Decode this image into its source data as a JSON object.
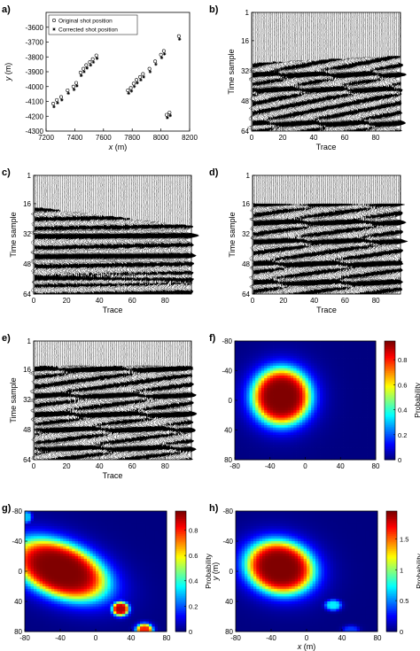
{
  "figure": {
    "panel_letters": [
      "a)",
      "b)",
      "c)",
      "d)",
      "e)",
      "f)",
      "g)",
      "h)"
    ]
  },
  "chart_data": [
    {
      "panel": "a)",
      "type": "scatter",
      "xlabel": "x (m)",
      "ylabel": "y (m)",
      "xlim": [
        7200,
        8200
      ],
      "ylim": [
        -4300,
        -3500
      ],
      "y_inverted": true,
      "xticks": [
        7200,
        7400,
        7600,
        7800,
        8000,
        8200
      ],
      "yticks": [
        -3600,
        -3700,
        -3800,
        -3900,
        -4000,
        -4100,
        -4200,
        -4300
      ],
      "legend": {
        "position": "top-left",
        "entries": [
          "Original shot position",
          "Corrected shot position"
        ]
      },
      "series": [
        {
          "name": "Original shot position",
          "marker": "circle",
          "x": [
            7250,
            7275,
            7305,
            7350,
            7390,
            7410,
            7440,
            7460,
            7480,
            7505,
            7525,
            7550,
            7770,
            7790,
            7810,
            7830,
            7855,
            7875,
            7920,
            7960,
            8000,
            8020,
            8040,
            8060,
            8125
          ],
          "y": [
            -4115,
            -4090,
            -4070,
            -4025,
            -4000,
            -3975,
            -3905,
            -3880,
            -3855,
            -3835,
            -3815,
            -3790,
            -4025,
            -4010,
            -3980,
            -3955,
            -3935,
            -3915,
            -3880,
            -3830,
            -3785,
            -3760,
            -4190,
            -4175,
            -3660
          ]
        },
        {
          "name": "Corrected shot position",
          "marker": "star",
          "x": [
            7255,
            7280,
            7310,
            7355,
            7395,
            7415,
            7445,
            7465,
            7485,
            7510,
            7530,
            7555,
            7775,
            7795,
            7815,
            7835,
            7860,
            7880,
            7925,
            7965,
            8005,
            8025,
            8045,
            8065,
            8130
          ],
          "y": [
            -4135,
            -4110,
            -4090,
            -4045,
            -4020,
            -3995,
            -3925,
            -3900,
            -3875,
            -3855,
            -3835,
            -3810,
            -4045,
            -4030,
            -4000,
            -3975,
            -3955,
            -3935,
            -3900,
            -3850,
            -3805,
            -3780,
            -4210,
            -4195,
            -3680
          ]
        }
      ]
    },
    {
      "panel": "b)",
      "type": "wiggle",
      "xlabel": "Trace",
      "ylabel": "Time sample",
      "xlim": [
        0,
        96
      ],
      "ylim": [
        1,
        64
      ],
      "xticks": [
        0,
        20,
        40,
        60,
        80
      ],
      "yticks": [
        1,
        16,
        32,
        48,
        64
      ],
      "first_arrival": [
        28,
        24
      ],
      "dark_bands": [
        34,
        42,
        60
      ]
    },
    {
      "panel": "c)",
      "type": "wiggle",
      "xlabel": "Trace",
      "ylabel": "Time sample",
      "xlim": [
        0,
        96
      ],
      "ylim": [
        1,
        64
      ],
      "xticks": [
        0,
        20,
        40,
        60,
        80
      ],
      "yticks": [
        1,
        16,
        32,
        48,
        64
      ],
      "first_arrival": [
        18,
        28
      ],
      "dark_bands": [
        33,
        44,
        56
      ]
    },
    {
      "panel": "d)",
      "type": "wiggle",
      "xlabel": "Trace",
      "ylabel": "Time sample",
      "xlim": [
        0,
        96
      ],
      "ylim": [
        1,
        64
      ],
      "xticks": [
        0,
        20,
        40,
        60,
        80
      ],
      "yticks": [
        1,
        16,
        32,
        48,
        64
      ],
      "first_arrival": [
        16,
        16
      ],
      "dark_bands": [
        16,
        26,
        36,
        48,
        58
      ]
    },
    {
      "panel": "e)",
      "type": "wiggle",
      "xlabel": "Trace",
      "ylabel": "Time sample",
      "xlim": [
        0,
        96
      ],
      "ylim": [
        1,
        64
      ],
      "xticks": [
        0,
        20,
        40,
        60,
        80
      ],
      "yticks": [
        1,
        16,
        32,
        48,
        64
      ],
      "first_arrival": [
        14,
        14
      ],
      "dark_bands": [
        16,
        30,
        40,
        48,
        58
      ]
    },
    {
      "panel": "f)",
      "type": "heatmap",
      "xlabel": "",
      "ylabel": "",
      "xlim": [
        -80,
        80
      ],
      "ylim": [
        -80,
        80
      ],
      "y_inverted": true,
      "xticks": [
        -80,
        -40,
        0,
        40,
        80
      ],
      "yticks": [
        -80,
        -40,
        0,
        40,
        80
      ],
      "colorbar": {
        "label": "Probability",
        "range": [
          0,
          0.95
        ],
        "ticks": [
          0,
          0.2,
          0.4,
          0.6,
          0.8
        ]
      },
      "blobs": [
        {
          "x": -27,
          "y": -5,
          "rx": 32,
          "ry": 37,
          "peak": 0.95
        }
      ]
    },
    {
      "panel": "g)",
      "type": "heatmap",
      "xlabel": "",
      "ylabel": "",
      "xlim": [
        -80,
        80
      ],
      "ylim": [
        -80,
        80
      ],
      "y_inverted": true,
      "xticks": [
        -80,
        -40,
        0,
        40,
        80
      ],
      "yticks": [
        -80,
        -40,
        0,
        40,
        80
      ],
      "colorbar": {
        "label": "Probability",
        "range": [
          0,
          0.95
        ],
        "ticks": [
          0,
          0.2,
          0.4,
          0.6,
          0.8
        ]
      },
      "blobs": [
        {
          "x": -40,
          "y": -2,
          "rx": 55,
          "ry": 33,
          "peak": 0.95,
          "tilt": -0.5
        },
        {
          "x": 28,
          "y": 50,
          "rx": 9,
          "ry": 9,
          "peak": 0.9
        },
        {
          "x": 55,
          "y": 78,
          "rx": 9,
          "ry": 8,
          "peak": 0.8
        },
        {
          "x": -78,
          "y": -72,
          "rx": 6,
          "ry": 8,
          "peak": 0.3
        }
      ]
    },
    {
      "panel": "h)",
      "type": "heatmap",
      "xlabel": "x (m)",
      "ylabel": "y (m)",
      "xlim": [
        -80,
        80
      ],
      "ylim": [
        -80,
        80
      ],
      "y_inverted": true,
      "xticks": [
        -80,
        -40,
        0,
        40,
        80
      ],
      "yticks": [
        -80,
        -40,
        0,
        40,
        80
      ],
      "colorbar": {
        "label": "Probability",
        "range": [
          0,
          1.95
        ],
        "ticks": [
          0,
          0.5,
          1,
          1.5
        ]
      },
      "blobs": [
        {
          "x": -30,
          "y": -5,
          "rx": 38,
          "ry": 33,
          "peak": 1.95,
          "tilt": -0.5
        },
        {
          "x": 30,
          "y": 45,
          "rx": 9,
          "ry": 7,
          "peak": 0.7
        },
        {
          "x": 50,
          "y": 78,
          "rx": 9,
          "ry": 6,
          "peak": 0.35
        }
      ]
    }
  ]
}
